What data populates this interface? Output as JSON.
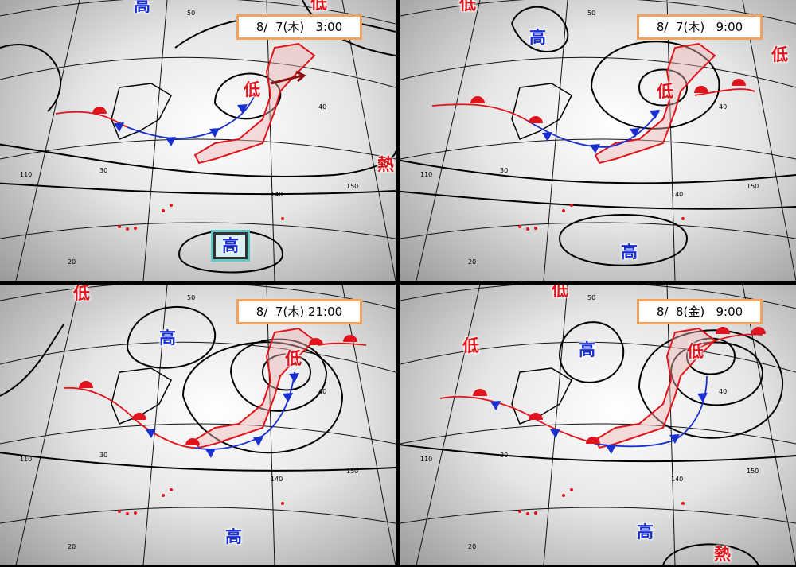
{
  "panels": [
    {
      "timestamp": "8/  7(木)   3:00",
      "systems": [
        {
          "text": "高",
          "type": "high"
        },
        {
          "text": "低",
          "type": "low"
        },
        {
          "text": "低",
          "type": "low"
        },
        {
          "text": "熱",
          "type": "low"
        },
        {
          "text": "高",
          "type": "high",
          "boxed": true
        }
      ]
    },
    {
      "timestamp": "8/  7(木)   9:00",
      "systems": [
        {
          "text": "低",
          "type": "low"
        },
        {
          "text": "高",
          "type": "high"
        },
        {
          "text": "低",
          "type": "low"
        },
        {
          "text": "低",
          "type": "low"
        },
        {
          "text": "高",
          "type": "high"
        }
      ]
    },
    {
      "timestamp": "8/  7(木) 21:00",
      "systems": [
        {
          "text": "低",
          "type": "low"
        },
        {
          "text": "高",
          "type": "high"
        },
        {
          "text": "低",
          "type": "low"
        },
        {
          "text": "高",
          "type": "high"
        }
      ]
    },
    {
      "timestamp": "8/  8(金)   9:00",
      "systems": [
        {
          "text": "低",
          "type": "low"
        },
        {
          "text": "低",
          "type": "low"
        },
        {
          "text": "高",
          "type": "high"
        },
        {
          "text": "低",
          "type": "low"
        },
        {
          "text": "高",
          "type": "high"
        },
        {
          "text": "熱",
          "type": "low"
        }
      ]
    }
  ],
  "grid_labels": [
    "50",
    "40",
    "30",
    "20",
    "110",
    "140",
    "150"
  ],
  "colors": {
    "high": "#1a2fd0",
    "low": "#e0141c",
    "stamp_border": "#f2a25c",
    "warm_front": "#e0141c",
    "cold_front": "#1a2fd0"
  }
}
